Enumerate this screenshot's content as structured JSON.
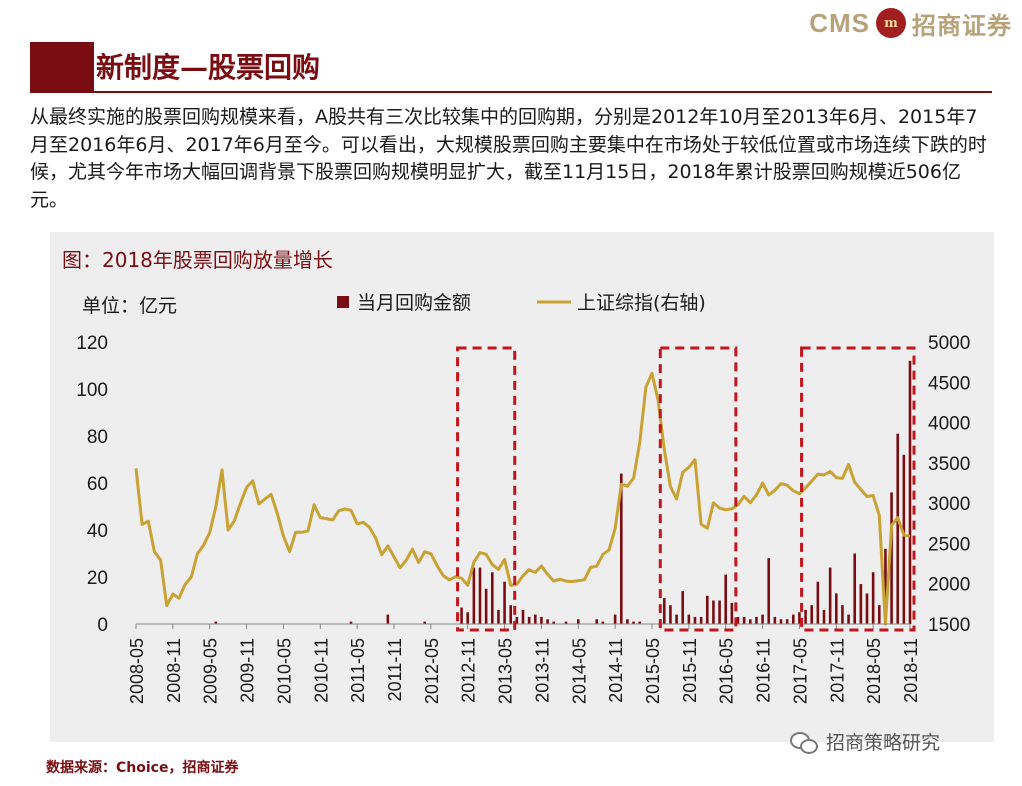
{
  "brand": {
    "cms": "CMS",
    "seal": "m",
    "name_cn": "招商证券"
  },
  "title": "新制度—股票回购",
  "intro": "从最终实施的股票回购规模来看，A股共有三次比较集中的回购期，分别是2012年10月至2013年6月、2015年7月至2016年6月、2017年6月至今。可以看出，大规模股票回购主要集中在市场处于较低位置或市场连续下跌的时候，尤其今年市场大幅回调背景下股票回购规模明显扩大，截至11月15日，2018年累计股票回购规模近506亿元。",
  "figure_title": "图：2018年股票回购放量增长",
  "source": "数据来源：Choice，招商证券",
  "watermark": "招商策略研究",
  "colors": {
    "accent": "#7a0d12",
    "bar": "#7a0d12",
    "line": "#c9a233",
    "highlight": "#c0161c",
    "panel": "#eeeeee"
  },
  "chart_data": {
    "type": "bar+line",
    "unit_label": "单位：亿元",
    "legend": [
      "当月回购金额",
      "上证综指(右轴)"
    ],
    "legend_position": "top",
    "x_ticks": [
      "2008-05",
      "2008-11",
      "2009-05",
      "2009-11",
      "2010-05",
      "2010-11",
      "2011-05",
      "2011-11",
      "2012-05",
      "2012-11",
      "2013-05",
      "2013-11",
      "2014-05",
      "2014-11",
      "2015-05",
      "2015-11",
      "2016-05",
      "2016-11",
      "2017-05",
      "2017-11",
      "2018-05",
      "2018-11"
    ],
    "x_range": [
      "2008-05",
      "2018-11"
    ],
    "y_left": {
      "ticks": [
        0,
        20,
        40,
        60,
        80,
        100,
        120
      ],
      "range": [
        0,
        120
      ]
    },
    "y_right": {
      "ticks": [
        1500,
        2000,
        2500,
        3000,
        3500,
        4000,
        4500,
        5000
      ],
      "range": [
        1500,
        5000
      ]
    },
    "grid": false,
    "series": [
      {
        "name": "当月回购金额",
        "type": "bar",
        "axis": "left",
        "x": [
          "2009-06",
          "2011-04",
          "2011-10",
          "2012-04",
          "2012-10",
          "2012-11",
          "2012-12",
          "2013-01",
          "2013-02",
          "2013-03",
          "2013-04",
          "2013-05",
          "2013-06",
          "2013-07",
          "2013-08",
          "2013-09",
          "2013-10",
          "2013-11",
          "2013-12",
          "2014-01",
          "2014-03",
          "2014-05",
          "2014-08",
          "2014-09",
          "2014-11",
          "2014-12",
          "2015-01",
          "2015-02",
          "2015-03",
          "2015-07",
          "2015-08",
          "2015-09",
          "2015-10",
          "2015-11",
          "2015-12",
          "2016-01",
          "2016-02",
          "2016-03",
          "2016-04",
          "2016-05",
          "2016-06",
          "2016-07",
          "2016-08",
          "2016-09",
          "2016-10",
          "2016-11",
          "2016-12",
          "2017-01",
          "2017-02",
          "2017-03",
          "2017-04",
          "2017-05",
          "2017-06",
          "2017-07",
          "2017-08",
          "2017-09",
          "2017-10",
          "2017-11",
          "2017-12",
          "2018-01",
          "2018-02",
          "2018-03",
          "2018-04",
          "2018-05",
          "2018-06",
          "2018-07",
          "2018-08",
          "2018-09",
          "2018-10",
          "2018-11"
        ],
        "values": [
          1,
          1,
          4,
          1,
          7,
          5,
          24,
          24,
          15,
          22,
          6,
          18,
          8,
          3,
          6,
          3,
          4,
          3,
          2,
          1,
          1,
          2,
          2,
          1,
          4,
          64,
          2,
          1,
          1,
          11,
          8,
          4,
          14,
          4,
          3,
          3,
          12,
          10,
          10,
          21,
          9,
          3,
          3,
          2,
          3,
          4,
          28,
          3,
          2,
          2,
          4,
          5,
          6,
          8,
          18,
          6,
          24,
          13,
          8,
          4,
          30,
          17,
          13,
          22,
          8,
          32,
          56,
          81,
          72,
          112
        ]
      },
      {
        "name": "上证综指(右轴)",
        "type": "line",
        "axis": "right",
        "x": [
          "2008-05",
          "2008-06",
          "2008-07",
          "2008-08",
          "2008-09",
          "2008-10",
          "2008-11",
          "2008-12",
          "2009-01",
          "2009-02",
          "2009-03",
          "2009-04",
          "2009-05",
          "2009-06",
          "2009-07",
          "2009-08",
          "2009-09",
          "2009-10",
          "2009-11",
          "2009-12",
          "2010-01",
          "2010-02",
          "2010-03",
          "2010-04",
          "2010-05",
          "2010-06",
          "2010-07",
          "2010-08",
          "2010-09",
          "2010-10",
          "2010-11",
          "2010-12",
          "2011-01",
          "2011-02",
          "2011-03",
          "2011-04",
          "2011-05",
          "2011-06",
          "2011-07",
          "2011-08",
          "2011-09",
          "2011-10",
          "2011-11",
          "2011-12",
          "2012-01",
          "2012-02",
          "2012-03",
          "2012-04",
          "2012-05",
          "2012-06",
          "2012-07",
          "2012-08",
          "2012-09",
          "2012-10",
          "2012-11",
          "2012-12",
          "2013-01",
          "2013-02",
          "2013-03",
          "2013-04",
          "2013-05",
          "2013-06",
          "2013-07",
          "2013-08",
          "2013-09",
          "2013-10",
          "2013-11",
          "2013-12",
          "2014-01",
          "2014-02",
          "2014-03",
          "2014-04",
          "2014-05",
          "2014-06",
          "2014-07",
          "2014-08",
          "2014-09",
          "2014-10",
          "2014-11",
          "2014-12",
          "2015-01",
          "2015-02",
          "2015-03",
          "2015-04",
          "2015-05",
          "2015-06",
          "2015-07",
          "2015-08",
          "2015-09",
          "2015-10",
          "2015-11",
          "2015-12",
          "2016-01",
          "2016-02",
          "2016-03",
          "2016-04",
          "2016-05",
          "2016-06",
          "2016-07",
          "2016-08",
          "2016-09",
          "2016-10",
          "2016-11",
          "2016-12",
          "2017-01",
          "2017-02",
          "2017-03",
          "2017-04",
          "2017-05",
          "2017-06",
          "2017-07",
          "2017-08",
          "2017-09",
          "2017-10",
          "2017-11",
          "2017-12",
          "2018-01",
          "2018-02",
          "2018-03",
          "2018-04",
          "2018-05",
          "2018-06",
          "2018-07",
          "2018-08",
          "2018-09",
          "2018-10",
          "2018-11"
        ],
        "values": [
          3433,
          2736,
          2776,
          2397,
          2293,
          1729,
          1871,
          1821,
          1990,
          2083,
          2373,
          2478,
          2633,
          2959,
          3412,
          2667,
          2779,
          2996,
          3195,
          3277,
          2989,
          3051,
          3110,
          2871,
          2592,
          2398,
          2638,
          2638,
          2656,
          2979,
          2820,
          2808,
          2791,
          2905,
          2928,
          2911,
          2743,
          2762,
          2702,
          2568,
          2359,
          2469,
          2333,
          2199,
          2293,
          2429,
          2263,
          2396,
          2373,
          2226,
          2103,
          2047,
          2087,
          2069,
          1980,
          2269,
          2385,
          2366,
          2237,
          2178,
          2300,
          1979,
          1994,
          2098,
          2174,
          2141,
          2220,
          2116,
          2033,
          2056,
          2033,
          2026,
          2039,
          2048,
          2202,
          2217,
          2364,
          2420,
          2683,
          3234,
          3210,
          3311,
          3748,
          4441,
          4611,
          4277,
          3664,
          3206,
          3053,
          3383,
          3446,
          3539,
          2738,
          2688,
          3004,
          2938,
          2917,
          2930,
          2979,
          3085,
          3005,
          3100,
          3250,
          3104,
          3159,
          3242,
          3223,
          3155,
          3117,
          3192,
          3273,
          3361,
          3349,
          3393,
          3317,
          3307,
          3481,
          3259,
          3169,
          3082,
          3095,
          2847,
          1500,
          2725,
          2821,
          2603,
          2588
        ]
      }
    ],
    "highlight_periods": [
      [
        "2012-10",
        "2013-06"
      ],
      [
        "2015-07",
        "2016-06"
      ],
      [
        "2017-06",
        "2018-11"
      ]
    ]
  }
}
